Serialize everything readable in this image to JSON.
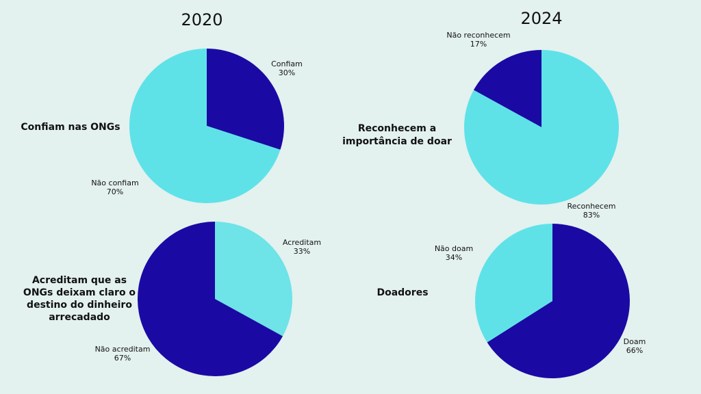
{
  "headers": [
    "2020",
    "2024"
  ],
  "chart_data": [
    {
      "type": "pie",
      "title": [
        "Confiam nas ONGs"
      ],
      "categories": [
        "Confiam",
        "Não confiam"
      ],
      "values": [
        30,
        70
      ],
      "value_labels": [
        "30%",
        "70%"
      ],
      "colors": [
        "#1a0aa3",
        "#5ee2e8"
      ]
    },
    {
      "type": "pie",
      "title": [
        "Acreditam que as",
        "ONGs  deixam claro o",
        "destino do dinheiro",
        "arrecadado"
      ],
      "categories": [
        "Acreditam",
        "Não acreditam"
      ],
      "values": [
        33,
        67
      ],
      "value_labels": [
        "33%",
        "67%"
      ],
      "colors": [
        "#6ee3e8",
        "#1a0aa3"
      ]
    },
    {
      "type": "pie",
      "title": [
        "Reconhecem a",
        "importância de doar"
      ],
      "categories": [
        "Reconhecem",
        "Não reconhecem"
      ],
      "values": [
        83,
        17
      ],
      "value_labels": [
        "83%",
        "17%"
      ],
      "colors": [
        "#5ee2e8",
        "#1a0aa3"
      ]
    },
    {
      "type": "pie",
      "title": [
        "Doadores"
      ],
      "categories": [
        "Doam",
        "Não doam"
      ],
      "values": [
        66,
        34
      ],
      "value_labels": [
        "66%",
        "34%"
      ],
      "colors": [
        "#1a0aa3",
        "#5ee2e8"
      ]
    }
  ]
}
